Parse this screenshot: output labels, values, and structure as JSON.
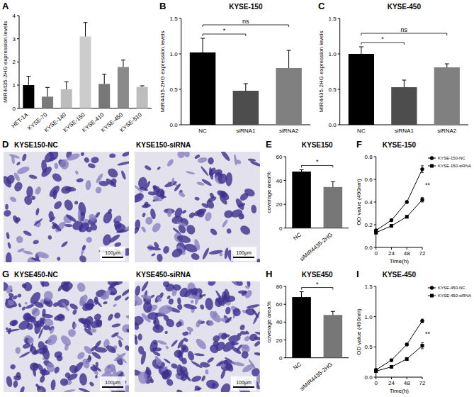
{
  "chart_data": [
    {
      "type": "bar",
      "panel": "A",
      "y_label": "MIR4435-2HG expression levels",
      "categories": [
        "HET-1A",
        "KYSE-70",
        "KYSE-140",
        "KYSE-150",
        "KYSE-410",
        "KYSE-450",
        "KYSE-510"
      ],
      "values": [
        1.0,
        0.5,
        0.82,
        3.1,
        1.05,
        1.78,
        0.92
      ],
      "errors": [
        0.38,
        0.4,
        0.32,
        0.6,
        0.42,
        0.3,
        0.05
      ],
      "colors": [
        "#000000",
        "#7a7a7a",
        "#bdbdbd",
        "#cccccc",
        "#777777",
        "#8a8a8a",
        "#bdbdbd"
      ],
      "ylim": [
        0,
        4
      ],
      "yticks": [
        0,
        1,
        2,
        3,
        4
      ]
    },
    {
      "type": "bar",
      "panel": "B",
      "title": "KYSE-150",
      "y_label": "MIR4435-2HG expression levels",
      "categories": [
        "NC",
        "siRNA1",
        "siRNA2"
      ],
      "values": [
        1.02,
        0.48,
        0.8
      ],
      "errors": [
        0.2,
        0.1,
        0.25
      ],
      "colors": [
        "#000000",
        "#4d4d4d",
        "#808080"
      ],
      "ylim": [
        0,
        1.5
      ],
      "yticks": [
        {
          "value": 0,
          "label": "0.0"
        },
        {
          "value": 0.5,
          "label": "0.5"
        },
        {
          "value": 1,
          "label": "1.0"
        },
        {
          "value": 1.5,
          "label": "1.5"
        }
      ],
      "annotations": [
        {
          "text": "*",
          "between": [
            "NC",
            "siRNA1"
          ]
        },
        {
          "text": "ns",
          "between": [
            "NC",
            "siRNA2"
          ]
        }
      ]
    },
    {
      "type": "bar",
      "panel": "C",
      "title": "KYSE-450",
      "y_label": "MIR4435-2HG expression levels",
      "categories": [
        "NC",
        "siRNA1",
        "siRNA2"
      ],
      "values": [
        1.0,
        0.53,
        0.81
      ],
      "errors": [
        0.1,
        0.1,
        0.05
      ],
      "colors": [
        "#000000",
        "#4d4d4d",
        "#808080"
      ],
      "ylim": [
        0,
        1.5
      ],
      "yticks": [
        {
          "value": 0,
          "label": "0.0"
        },
        {
          "value": 0.5,
          "label": "0.5"
        },
        {
          "value": 1,
          "label": "1.0"
        },
        {
          "value": 1.5,
          "label": "1.5"
        }
      ],
      "annotations": [
        {
          "text": "*",
          "between": [
            "NC",
            "siRNA1"
          ]
        },
        {
          "text": "ns",
          "between": [
            "NC",
            "siRNA2"
          ]
        }
      ]
    },
    {
      "type": "bar",
      "panel": "E",
      "title": "KYSE150",
      "y_label": "coverage area%",
      "categories": [
        "NC",
        "siMIR4435-2HG"
      ],
      "values": [
        47.5,
        34.5
      ],
      "errors": [
        1.5,
        4.5
      ],
      "colors": [
        "#000000",
        "#777777"
      ],
      "ylim": [
        0,
        60
      ],
      "yticks": [
        0,
        20,
        40,
        60
      ],
      "annotations": [
        {
          "text": "*",
          "between": [
            "NC",
            "siMIR4435-2HG"
          ]
        }
      ]
    },
    {
      "type": "line",
      "panel": "F",
      "title": "KYSE-150",
      "x_label": "Time(h)",
      "y_label": "OD value (490nm)",
      "x": [
        0,
        24,
        48,
        72
      ],
      "xlim": [
        0,
        72
      ],
      "xticks": [
        0,
        24,
        48,
        72
      ],
      "ylim": [
        0,
        0.8
      ],
      "yticks": [
        {
          "value": 0,
          "label": "0.0"
        },
        {
          "value": 0.2,
          "label": "0.2"
        },
        {
          "value": 0.4,
          "label": "0.4"
        },
        {
          "value": 0.6,
          "label": "0.6"
        },
        {
          "value": 0.8,
          "label": "0.8"
        }
      ],
      "legend": "right",
      "series": [
        {
          "name": "KYSE-150-NC",
          "color": "#000000",
          "marker": "circle",
          "values": [
            0.15,
            0.24,
            0.4,
            0.69
          ],
          "errors": [
            0.01,
            0.01,
            0.01,
            0.03
          ]
        },
        {
          "name": "KYSE-150-siRNA",
          "color": "#000000",
          "marker": "square",
          "values": [
            0.13,
            0.19,
            0.27,
            0.42
          ],
          "errors": [
            0.01,
            0.01,
            0.01,
            0.02
          ]
        }
      ],
      "annotations": [
        {
          "text": "**"
        }
      ]
    },
    {
      "type": "bar",
      "panel": "H",
      "title": "KYSE450",
      "y_label": "coverage area%",
      "categories": [
        "NC",
        "siMIR4435-2HG"
      ],
      "values": [
        68,
        48
      ],
      "errors": [
        6,
        4
      ],
      "colors": [
        "#000000",
        "#777777"
      ],
      "ylim": [
        0,
        80
      ],
      "yticks": [
        0,
        20,
        40,
        60,
        80
      ],
      "annotations": [
        {
          "text": "*",
          "between": [
            "NC",
            "siMIR4435-2HG"
          ]
        }
      ]
    },
    {
      "type": "line",
      "panel": "I",
      "title": "KYSE-450",
      "x_label": "Time(h)",
      "y_label": "OD value (490nm)",
      "x": [
        0,
        24,
        48,
        72
      ],
      "xlim": [
        0,
        72
      ],
      "xticks": [
        0,
        24,
        48,
        72
      ],
      "ylim": [
        0,
        1.5
      ],
      "yticks": [
        {
          "value": 0,
          "label": "0.0"
        },
        {
          "value": 0.5,
          "label": "0.5"
        },
        {
          "value": 1,
          "label": "1.0"
        },
        {
          "value": 1.5,
          "label": "1.5"
        }
      ],
      "legend": "right",
      "series": [
        {
          "name": "KYSE-450-NC",
          "color": "#000000",
          "marker": "circle",
          "values": [
            0.12,
            0.28,
            0.54,
            0.93
          ],
          "errors": [
            0.01,
            0.02,
            0.02,
            0.03
          ]
        },
        {
          "name": "KYSE-450-siRNA",
          "color": "#000000",
          "marker": "square",
          "values": [
            0.1,
            0.17,
            0.3,
            0.52
          ],
          "errors": [
            0.01,
            0.01,
            0.02,
            0.05
          ]
        }
      ],
      "annotations": [
        {
          "text": "**"
        }
      ]
    }
  ],
  "micrographs": [
    {
      "panel": "D",
      "images": [
        {
          "label": "KYSE150-NC",
          "scale_bar": "100μm"
        },
        {
          "label": "KYSE150-siRNA",
          "scale_bar": "100μm"
        }
      ]
    },
    {
      "panel": "G",
      "images": [
        {
          "label": "KYSE450-NC",
          "scale_bar": "100μm"
        },
        {
          "label": "KYSE450-siRNA",
          "scale_bar": "100μm"
        }
      ]
    }
  ]
}
